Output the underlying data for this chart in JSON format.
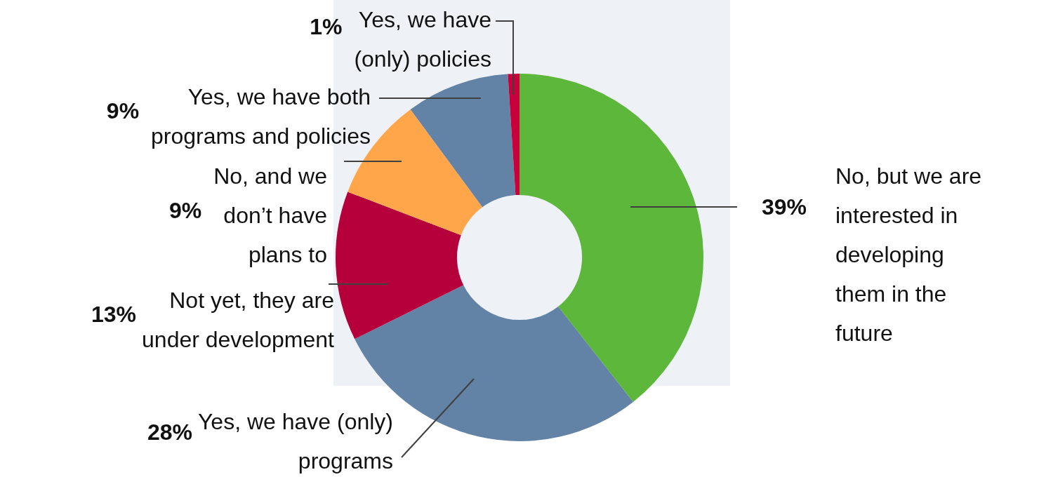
{
  "chart_data": {
    "type": "donut",
    "categories": [
      "No, but we are interested in developing them in the future",
      "Yes, we have (only) programs",
      "Not yet, they are under development",
      "No, and we don’t have plans to",
      "Yes, we have both programs and policies",
      "Yes, we have (only) policies"
    ],
    "values": [
      39,
      28,
      13,
      9,
      9,
      1
    ],
    "value_labels": [
      "39%",
      "28%",
      "13%",
      "9%",
      "9%",
      "1%"
    ],
    "colors": [
      "#5cb73a",
      "#6283a6",
      "#b5003b",
      "#ffa64a",
      "#6283a6",
      "#c8003c"
    ],
    "legend": false
  }
}
